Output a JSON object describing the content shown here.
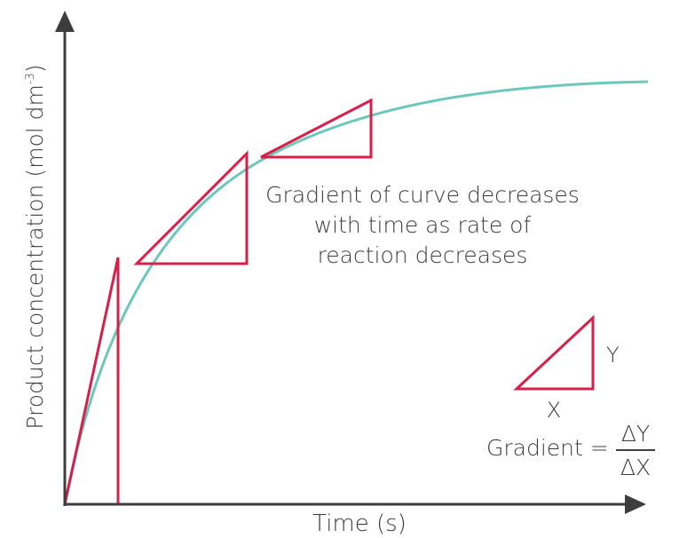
{
  "colors": {
    "axis": "#3d3d3d",
    "curve": "#6cc8bb",
    "triangle": "#d81f4a",
    "text": "#3d3d3d"
  },
  "axes": {
    "x_label": "Time (s)",
    "y_label": "Product concentration (mol dm",
    "y_label_sup": "-3",
    "y_label_close": ")"
  },
  "annotation": {
    "lines": [
      "Gradient of curve decreases",
      "with time as rate of",
      "reaction decreases"
    ]
  },
  "key": {
    "x_label": "X",
    "y_label": "Y",
    "gradient_label": "Gradient =",
    "numerator": "ΔY",
    "denominator": "ΔX"
  }
}
